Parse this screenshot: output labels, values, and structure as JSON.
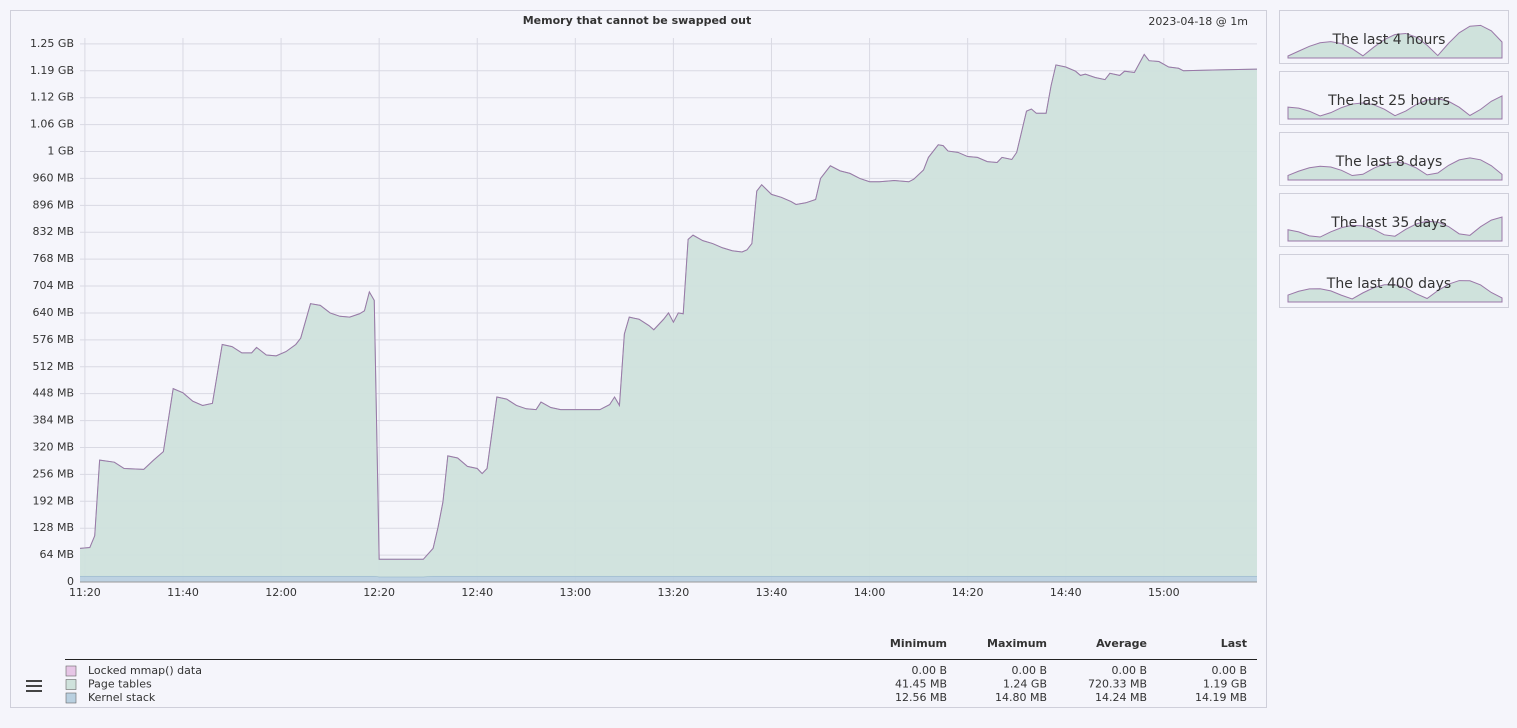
{
  "chart_data": {
    "type": "stacked_area",
    "title": "Memory that cannot be swapped out",
    "subtitle": "2023-04-18 @ 1m",
    "x": [
      679,
      681,
      682,
      683,
      686,
      688,
      692,
      694,
      696,
      698,
      700,
      702,
      704,
      706,
      708,
      710,
      712,
      714,
      715,
      717,
      719,
      721,
      723,
      724,
      726,
      728,
      730,
      732,
      734,
      736,
      737,
      738,
      739,
      740,
      749,
      751,
      752,
      753,
      754,
      756,
      758,
      760,
      761,
      762,
      764,
      766,
      768,
      770,
      772,
      773,
      775,
      777,
      785,
      787,
      788,
      789,
      790,
      791,
      793,
      795,
      796,
      798,
      799,
      800,
      801,
      802,
      803,
      804,
      806,
      808,
      810,
      812,
      814,
      815,
      816,
      817,
      818,
      820,
      822,
      824,
      825,
      827,
      829,
      830,
      832,
      834,
      836,
      838,
      840,
      842,
      845,
      848,
      849,
      851,
      852,
      854,
      855,
      856,
      858,
      860,
      862,
      864,
      866,
      867,
      869,
      870,
      872,
      873,
      874,
      876,
      877,
      878,
      880,
      882,
      883,
      884,
      886,
      888,
      889,
      891,
      892,
      894,
      896,
      897,
      899,
      901,
      903,
      904,
      910,
      919
    ],
    "series": [
      {
        "name": "Locked mmap() data",
        "color": "#e6c6e6",
        "line_color": "#9a78a8",
        "values": [
          0,
          0,
          0,
          0,
          0,
          0,
          0,
          0,
          0,
          0,
          0,
          0,
          0,
          0,
          0,
          0,
          0,
          0,
          0,
          0,
          0,
          0,
          0,
          0,
          0,
          0,
          0,
          0,
          0,
          0,
          0,
          0,
          0,
          0,
          0,
          0,
          0,
          0,
          0,
          0,
          0,
          0,
          0,
          0,
          0,
          0,
          0,
          0,
          0,
          0,
          0,
          0,
          0,
          0,
          0,
          0,
          0,
          0,
          0,
          0,
          0,
          0,
          0,
          0,
          0,
          0,
          0,
          0,
          0,
          0,
          0,
          0,
          0,
          0,
          0,
          0,
          0,
          0,
          0,
          0,
          0,
          0,
          0,
          0,
          0,
          0,
          0,
          0,
          0,
          0,
          0,
          0,
          0,
          0,
          0,
          0,
          0,
          0,
          0,
          0,
          0,
          0,
          0,
          0,
          0,
          0,
          0,
          0,
          0,
          0,
          0,
          0,
          0,
          0,
          0,
          0,
          0,
          0,
          0,
          0,
          0,
          0,
          0,
          0,
          0,
          0,
          0,
          0,
          0,
          0
        ]
      },
      {
        "name": "Page tables",
        "color": "#cfe2dc",
        "line_color": "#a9c6bd",
        "values": [
          66,
          68,
          96,
          276,
          271,
          256,
          254,
          276,
          296,
          446,
          436,
          416,
          406,
          411,
          551,
          546,
          531,
          531,
          544,
          526,
          524,
          534,
          551,
          566,
          648,
          644,
          626,
          618,
          616,
          624,
          631,
          676,
          656,
          41.4,
          41.4,
          66,
          116,
          176,
          286,
          281,
          261,
          256,
          244,
          256,
          426,
          421,
          406,
          398,
          396,
          414,
          401,
          396,
          396,
          408,
          426,
          406,
          576,
          616,
          611,
          596,
          586,
          611,
          626,
          604,
          626,
          624,
          801,
          811,
          798,
          791,
          781,
          774,
          771,
          776,
          791,
          916,
          931,
          908,
          901,
          891,
          884,
          888,
          896,
          946,
          976,
          964,
          958,
          946,
          938,
          938,
          941,
          938,
          944,
          966,
          996,
          1026,
          1024,
          1011,
          1008,
          998,
          996,
          986,
          984,
          996,
          991,
          1008,
          1106,
          1111,
          1101,
          1101,
          1166,
          1216,
          1211,
          1201,
          1191,
          1194,
          1186,
          1181,
          1196,
          1191,
          1201,
          1198,
          1241,
          1226,
          1224,
          1211,
          1208,
          1202,
          1204,
          1206
        ]
      },
      {
        "name": "Kernel stack",
        "color": "#b9d0e0",
        "line_color": "#8fb0c8",
        "values": [
          14,
          14,
          14,
          14,
          14,
          14,
          14,
          14,
          14,
          14,
          14,
          14,
          14,
          14,
          14,
          14,
          14,
          14,
          14,
          14,
          14,
          14,
          14,
          14,
          14,
          14,
          14,
          14,
          14,
          14,
          14,
          14,
          14,
          12.6,
          12.6,
          14,
          14,
          14,
          14,
          14,
          14,
          14,
          14,
          14,
          14,
          14,
          14,
          14,
          14,
          14,
          14,
          14,
          14,
          14,
          14,
          14,
          14,
          14,
          14,
          14,
          14,
          14,
          14,
          14,
          14,
          14,
          14,
          14,
          14,
          14,
          14,
          14,
          14,
          14,
          14,
          14,
          14,
          14,
          14,
          14,
          14,
          14,
          14,
          14,
          14,
          14,
          14,
          14,
          14,
          14,
          14,
          14,
          14,
          14,
          14,
          14,
          14,
          14,
          14,
          14,
          14,
          14,
          14,
          14,
          14,
          14,
          14,
          14,
          14,
          14,
          14,
          14,
          14,
          14,
          14,
          14,
          14,
          14,
          14,
          14,
          14,
          14,
          14,
          14,
          14,
          14,
          14,
          14,
          14,
          14
        ]
      }
    ],
    "xlim": [
      679,
      919
    ],
    "xticks": [
      {
        "value": 680,
        "label": "11:20"
      },
      {
        "value": 700,
        "label": "11:40"
      },
      {
        "value": 720,
        "label": "12:00"
      },
      {
        "value": 740,
        "label": "12:20"
      },
      {
        "value": 760,
        "label": "12:40"
      },
      {
        "value": 780,
        "label": "13:00"
      },
      {
        "value": 800,
        "label": "13:20"
      },
      {
        "value": 820,
        "label": "13:40"
      },
      {
        "value": 840,
        "label": "14:00"
      },
      {
        "value": 860,
        "label": "14:20"
      },
      {
        "value": 880,
        "label": "14:40"
      },
      {
        "value": 900,
        "label": "15:00"
      }
    ],
    "ylim": [
      0,
      1294
    ],
    "yticks": [
      0,
      {
        "value": 64,
        "label": "64 MB"
      },
      {
        "value": 128,
        "label": "128 MB"
      },
      {
        "value": 192,
        "label": "192 MB"
      },
      {
        "value": 256,
        "label": "256 MB"
      },
      {
        "value": 320,
        "label": "320 MB"
      },
      {
        "value": 384,
        "label": "384 MB"
      },
      {
        "value": 448,
        "label": "448 MB"
      },
      {
        "value": 512,
        "label": "512 MB"
      },
      {
        "value": 576,
        "label": "576 MB"
      },
      {
        "value": 640,
        "label": "640 MB"
      },
      {
        "value": 704,
        "label": "704 MB"
      },
      {
        "value": 768,
        "label": "768 MB"
      },
      {
        "value": 832,
        "label": "832 MB"
      },
      {
        "value": 896,
        "label": "896 MB"
      },
      {
        "value": 960,
        "label": "960 MB"
      },
      {
        "value": 1024,
        "label": "1 GB"
      },
      {
        "value": 1088,
        "label": "1.06 GB"
      },
      {
        "value": 1152,
        "label": "1.12 GB"
      },
      {
        "value": 1216,
        "label": "1.19 GB"
      },
      {
        "value": 1280,
        "label": "1.25 GB"
      }
    ],
    "grid": true,
    "legend_stats": {
      "headers": [
        "Minimum",
        "Maximum",
        "Average",
        "Last"
      ],
      "rows": [
        [
          "0.00 B",
          "0.00 B",
          "0.00 B",
          "0.00 B"
        ],
        [
          "41.45 MB",
          "1.24 GB",
          "720.33 MB",
          "1.19 GB"
        ],
        [
          "12.56 MB",
          "14.80 MB",
          "14.24 MB",
          "14.19 MB"
        ]
      ]
    }
  },
  "zoom_panels": [
    "The last 4 hours",
    "The last 25 hours",
    "The last 8 days",
    "The last 35 days",
    "The last 400 days"
  ]
}
